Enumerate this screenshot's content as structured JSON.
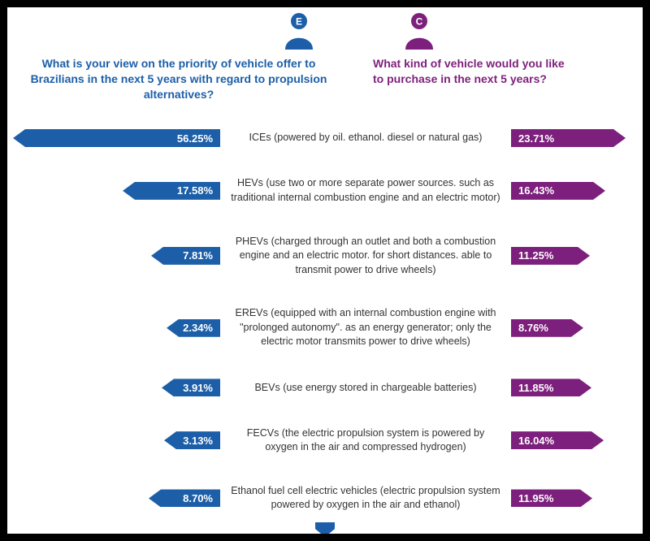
{
  "colors": {
    "blue": "#1c5fa8",
    "purple": "#7d1f7c"
  },
  "header": {
    "left_icon_letter": "E",
    "right_icon_letter": "C",
    "left_question": "What is your view on the priority of vehicle offer to Brazilians in the next 5 years with regard to propulsion alternatives?",
    "right_question": "What kind of vehicle would you like to purchase in the next 5 years?"
  },
  "chart_data": {
    "type": "bar",
    "orientation": "diverging-horizontal",
    "categories": [
      "ICEs (powered by oil. ethanol. diesel or natural gas)",
      "HEVs (use two or more separate power sources. such as traditional internal combustion engine and an electric motor)",
      "PHEVs (charged through an outlet and both a combustion engine and an electric motor. for short distances. able to transmit power to drive wheels)",
      "EREVs (equipped with an internal combustion engine with \"prolonged autonomy\". as an energy generator; only the electric motor transmits power to drive wheels)",
      "BEVs (use energy stored in chargeable batteries)",
      "FECVs (the electric propulsion system is powered by oxygen in the air and compressed hydrogen)",
      "Ethanol fuel cell electric vehicles (electric propulsion system powered by oxygen in the air and ethanol)"
    ],
    "series": [
      {
        "name": "What is your view on the priority of vehicle offer to Brazilians in the next 5 years with regard to propulsion alternatives?",
        "color": "#1c5fa8",
        "values": [
          56.25,
          17.58,
          7.81,
          2.34,
          3.91,
          3.13,
          8.7
        ]
      },
      {
        "name": "What kind of vehicle would you like to purchase in the next 5 years?",
        "color": "#7d1f7c",
        "values": [
          23.71,
          16.43,
          11.25,
          8.76,
          11.85,
          16.04,
          11.95
        ]
      }
    ],
    "value_unit": "%",
    "legend_position": "none",
    "grid": false
  },
  "rows": [
    {
      "label": "ICEs (powered by oil. ethanol. diesel or natural gas)",
      "left": "56.25%",
      "left_value": 56.25,
      "right": "23.71%",
      "right_value": 23.71
    },
    {
      "label": "HEVs (use two or more separate power sources. such as traditional internal combustion engine and an electric motor)",
      "left": "17.58%",
      "left_value": 17.58,
      "right": "16.43%",
      "right_value": 16.43
    },
    {
      "label": "PHEVs (charged through an outlet and both a combustion engine and an electric motor. for short distances. able to transmit power to drive wheels)",
      "left": "7.81%",
      "left_value": 7.81,
      "right": "11.25%",
      "right_value": 11.25
    },
    {
      "label": "EREVs (equipped with an internal combustion engine with \"prolonged autonomy\". as an energy generator; only the electric motor transmits power to drive wheels)",
      "left": "2.34%",
      "left_value": 2.34,
      "right": "8.76%",
      "right_value": 8.76
    },
    {
      "label": "BEVs (use energy stored in chargeable batteries)",
      "left": "3.91%",
      "left_value": 3.91,
      "right": "11.85%",
      "right_value": 11.85
    },
    {
      "label": "FECVs (the electric propulsion system is powered by oxygen in the air and compressed hydrogen)",
      "left": "3.13%",
      "left_value": 3.13,
      "right": "16.04%",
      "right_value": 16.04
    },
    {
      "label": "Ethanol fuel cell electric vehicles (electric propulsion system powered by oxygen in the air and ethanol)",
      "left": "8.70%",
      "left_value": 8.7,
      "right": "11.95%",
      "right_value": 11.95
    }
  ]
}
